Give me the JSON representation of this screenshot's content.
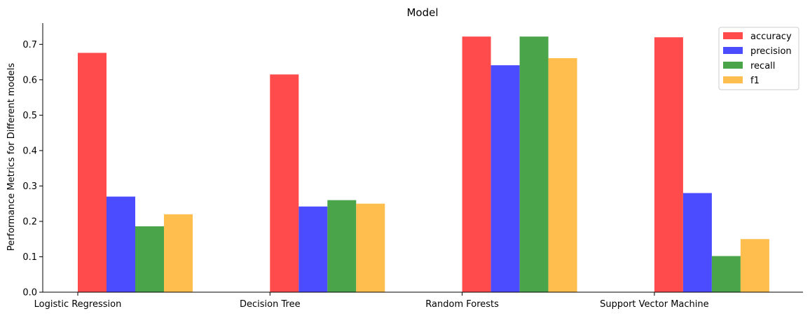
{
  "chart_data": {
    "type": "bar",
    "title": "Model",
    "xlabel": "",
    "ylabel": "Performance Metrics for Different models",
    "categories": [
      "Logistic Regression",
      "Decision Tree",
      "Random Forests",
      "Support Vector Machine"
    ],
    "series": [
      {
        "name": "accuracy",
        "color": "#ff4b4b",
        "values": [
          0.676,
          0.615,
          0.722,
          0.72
        ]
      },
      {
        "name": "precision",
        "color": "#4b4bff",
        "values": [
          0.27,
          0.242,
          0.641,
          0.28
        ]
      },
      {
        "name": "recall",
        "color": "#4aa54a",
        "values": [
          0.186,
          0.26,
          0.722,
          0.102
        ]
      },
      {
        "name": "f1",
        "color": "#ffbe4d",
        "values": [
          0.22,
          0.25,
          0.661,
          0.15
        ]
      }
    ],
    "ylim": [
      0,
      0.76
    ],
    "yticks": [
      "0.0",
      "0.1",
      "0.2",
      "0.3",
      "0.4",
      "0.5",
      "0.6",
      "0.7"
    ],
    "grid": false,
    "legend_position": "top-right"
  }
}
